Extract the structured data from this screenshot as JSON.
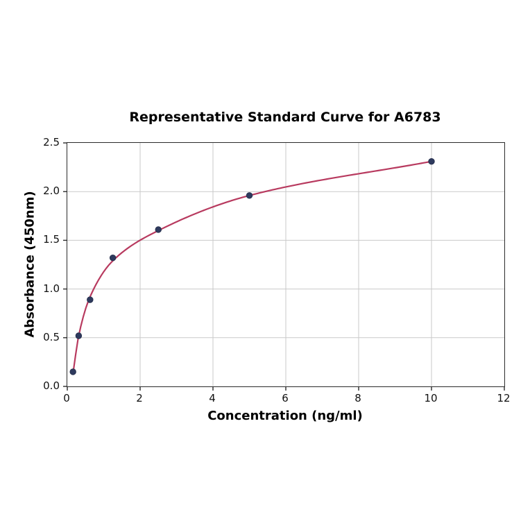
{
  "figure": {
    "background": "#ffffff"
  },
  "chart_data": {
    "type": "scatter",
    "title": "Representative Standard Curve for A6783",
    "xlabel": "Concentration (ng/ml)",
    "ylabel": "Absorbance (450nm)",
    "xlim": [
      0,
      12
    ],
    "ylim": [
      0,
      2.5
    ],
    "xticks": [
      0,
      2,
      4,
      6,
      8,
      10,
      12
    ],
    "xtick_labels": [
      "0",
      "2",
      "4",
      "6",
      "8",
      "10",
      "12"
    ],
    "yticks": [
      0,
      0.5,
      1,
      1.5,
      2,
      2.5
    ],
    "ytick_labels": [
      "0.0",
      "0.5",
      "1.0",
      "1.5",
      "2.0",
      "2.5"
    ],
    "grid": true,
    "legend_position": "none",
    "series": [
      {
        "name": "standard-points",
        "type": "scatter",
        "points": [
          {
            "x": 0.156,
            "y": 0.15
          },
          {
            "x": 0.3125,
            "y": 0.52
          },
          {
            "x": 0.625,
            "y": 0.89
          },
          {
            "x": 1.25,
            "y": 1.32
          },
          {
            "x": 2.5,
            "y": 1.61
          },
          {
            "x": 5,
            "y": 1.96
          },
          {
            "x": 10,
            "y": 2.31
          }
        ]
      },
      {
        "name": "fitted-curve",
        "type": "line",
        "points": [
          {
            "x": 0.156,
            "y": 0.13
          },
          {
            "x": 0.3125,
            "y": 0.52
          },
          {
            "x": 0.625,
            "y": 0.92
          },
          {
            "x": 1.25,
            "y": 1.29
          },
          {
            "x": 2.5,
            "y": 1.6
          },
          {
            "x": 5,
            "y": 1.96
          },
          {
            "x": 10,
            "y": 2.31
          }
        ]
      }
    ],
    "colors": {
      "curve_line": "#b83a5f",
      "marker_fill": "#2e3a5e",
      "marker_edge": "#232c49",
      "gridline": "#c9c9c9",
      "spine": "#2a2a2a",
      "text": "#000000"
    },
    "marker_radius": 4.3,
    "line_width": 2.2
  }
}
